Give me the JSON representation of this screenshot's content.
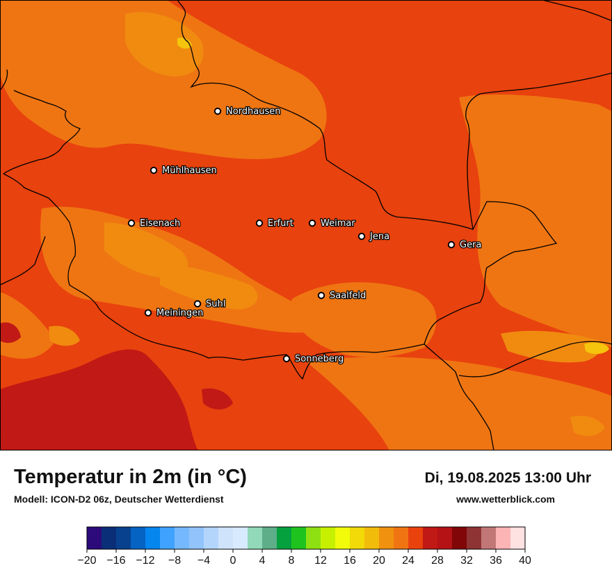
{
  "header": {
    "title": "Temperatur in 2m (in °C)",
    "subtitle": "Modell: ICON-D2 06z, Deutscher Wetterdienst",
    "datetime": "Di, 19.08.2025 13:00 Uhr",
    "website": "www.wetterblick.com"
  },
  "cities": [
    {
      "name": "Nordhausen"
    },
    {
      "name": "Mühlhausen"
    },
    {
      "name": "Eisenach"
    },
    {
      "name": "Erfurt"
    },
    {
      "name": "Weimar"
    },
    {
      "name": "Jena"
    },
    {
      "name": "Gera"
    },
    {
      "name": "Suhl"
    },
    {
      "name": "Meiningen"
    },
    {
      "name": "Saalfeld"
    },
    {
      "name": "Sonneberg"
    }
  ],
  "legend": {
    "colors": [
      "#2c0a7a",
      "#0a2e78",
      "#08418e",
      "#0463c3",
      "#0585ee",
      "#3fa2ff",
      "#76b8fd",
      "#92c3fb",
      "#b4d5fb",
      "#cfe3fb",
      "#d7eafe",
      "#91d9b8",
      "#5eae89",
      "#05a13e",
      "#1ec31e",
      "#8fe012",
      "#c6f000",
      "#f1fb0a",
      "#f2d908",
      "#f2bc0a",
      "#f0920f",
      "#f07512",
      "#ea420d",
      "#c11915",
      "#b51215",
      "#800608",
      "#8f3434",
      "#c27777",
      "#fdb4b4",
      "#fee1e1"
    ],
    "ticks": [
      "−20",
      "−16",
      "−12",
      "−8",
      "−4",
      "0",
      "4",
      "8",
      "12",
      "16",
      "20",
      "24",
      "28",
      "32",
      "36",
      "40"
    ]
  },
  "map_colors": {
    "base": "#e8420e",
    "warm_lower": "#ef7512",
    "warm": "#f08b10",
    "warmest": "#f5c40c",
    "hot": "#c11915",
    "border": "#000000"
  }
}
